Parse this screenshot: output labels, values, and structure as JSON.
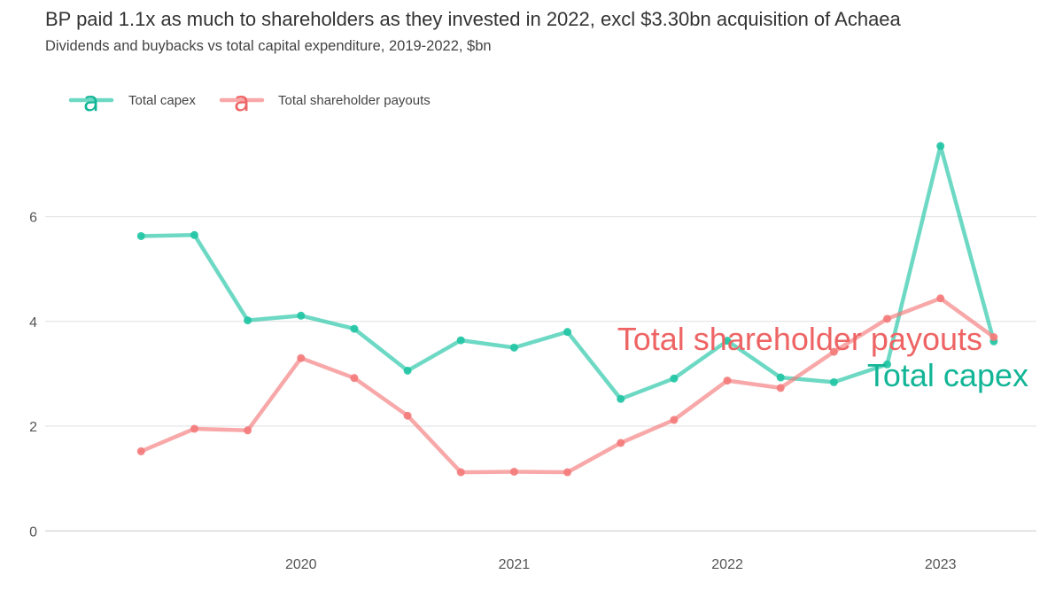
{
  "header": {
    "title": "BP paid 1.1x as much to shareholders as they invested in 2022, excl $3.30bn acquisition of Achaea",
    "subtitle": "Dividends and buybacks vs total capital expenditure, 2019-2022, $bn"
  },
  "colors": {
    "capex": "#1fc4a4",
    "payouts": "#f47a7a",
    "capex_label": "#12b596",
    "payouts_label": "#ee6464",
    "grid": "#e0e0e0",
    "axis": "#c8c8c8"
  },
  "chart_data": {
    "type": "line",
    "title": "BP paid 1.1x as much to shareholders as they invested in 2022, excl $3.30bn acquisition of Achaea",
    "subtitle": "Dividends and buybacks vs total capital expenditure, 2019-2022, $bn",
    "xlabel": "",
    "ylabel": "",
    "x_ticks": [
      "2020",
      "2021",
      "2022",
      "2023"
    ],
    "x_tick_values": [
      2020.0,
      2021.0,
      2022.0,
      2023.0
    ],
    "y_ticks": [
      "0",
      "2",
      "4",
      "6"
    ],
    "y_tick_values": [
      0,
      2,
      4,
      6
    ],
    "xlim": [
      2018.8,
      2023.45
    ],
    "ylim": [
      -0.3,
      7.6
    ],
    "grid": true,
    "legend_position": "top-left",
    "legend_glyph": "a",
    "x": [
      2019.25,
      2019.5,
      2019.75,
      2020.0,
      2020.25,
      2020.5,
      2020.75,
      2021.0,
      2021.25,
      2021.5,
      2021.75,
      2022.0,
      2022.25,
      2022.5,
      2022.75,
      2023.0,
      2023.25
    ],
    "series": [
      {
        "name": "Total capex",
        "key": "capex",
        "end_label": "Total capex",
        "values": [
          5.63,
          5.65,
          4.02,
          4.11,
          3.86,
          3.06,
          3.64,
          3.5,
          3.8,
          2.52,
          2.91,
          3.63,
          2.93,
          2.84,
          3.18,
          7.35,
          3.62
        ]
      },
      {
        "name": "Total shareholder payouts",
        "key": "payouts",
        "end_label": "Total shareholder payouts",
        "values": [
          1.52,
          1.95,
          1.92,
          3.3,
          2.92,
          2.2,
          1.12,
          1.13,
          1.12,
          1.68,
          2.12,
          2.87,
          2.73,
          3.42,
          4.05,
          4.44,
          3.7
        ]
      }
    ]
  }
}
